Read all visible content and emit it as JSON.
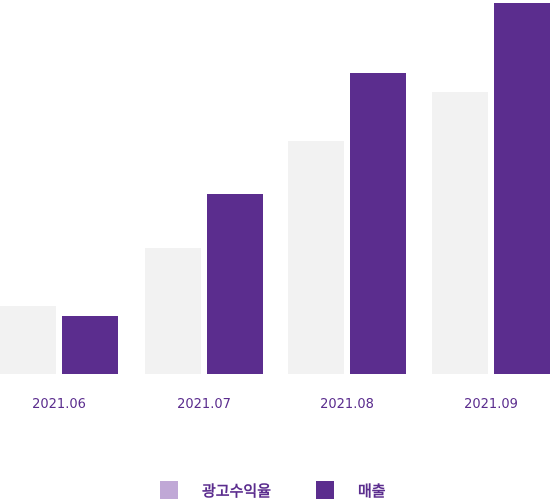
{
  "chart_data": {
    "type": "bar",
    "categories": [
      "2021.06",
      "2021.07",
      "2021.08",
      "2021.09"
    ],
    "series": [
      {
        "name": "광고수익율",
        "values": [
          68,
          126,
          233,
          282
        ],
        "color": "#f2f2f2",
        "legend_color": "#c0a8d6"
      },
      {
        "name": "매출",
        "values": [
          58,
          180,
          301,
          371
        ],
        "color": "#5b2d8e",
        "legend_color": "#5b2d8e"
      }
    ],
    "ylim": [
      0,
      372
    ],
    "grid": false,
    "legend_placement": "bottom-center",
    "title": "",
    "xlabel": "",
    "ylabel": ""
  }
}
